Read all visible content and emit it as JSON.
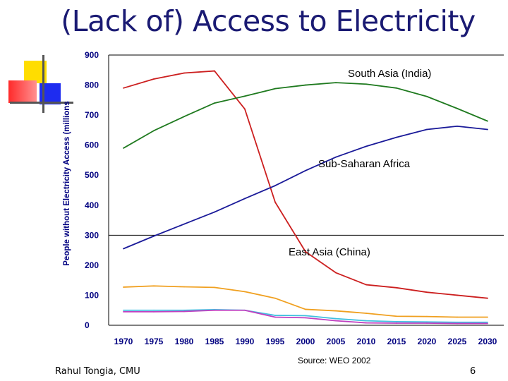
{
  "slide": {
    "title": "(Lack of) Access to Electricity",
    "footer_left": "Rahul Tongia, CMU",
    "footer_right": "6",
    "source": "Source: WEO 2002"
  },
  "chart_data": {
    "type": "line",
    "title": "",
    "xlabel": "",
    "ylabel": "People without Electricity Access (millions",
    "ylim": [
      0,
      900
    ],
    "yticks": [
      0,
      100,
      200,
      300,
      400,
      500,
      600,
      700,
      800,
      900
    ],
    "x": [
      1970,
      1975,
      1980,
      1985,
      1990,
      1995,
      2000,
      2005,
      2010,
      2015,
      2020,
      2025,
      2030
    ],
    "grid": "horizontal lines at 300 and 900",
    "annotations": [
      "South Asia (India)",
      "Sub-Saharan Africa",
      "East Asia (China)"
    ],
    "series": [
      {
        "color": "#cc1f1f",
        "values": [
          790,
          820,
          840,
          847,
          720,
          410,
          245,
          175,
          135,
          125,
          110,
          100,
          90
        ]
      },
      {
        "color": "#1f7a1f",
        "values": [
          590,
          648,
          695,
          740,
          763,
          788,
          800,
          808,
          803,
          790,
          762,
          722,
          680
        ]
      },
      {
        "color": "#1a1a99",
        "values": [
          255,
          297,
          337,
          377,
          422,
          465,
          515,
          560,
          596,
          626,
          652,
          663,
          652
        ]
      },
      {
        "color": "#f0a020",
        "values": [
          127,
          131,
          128,
          126,
          112,
          90,
          53,
          48,
          40,
          30,
          29,
          27,
          27
        ]
      },
      {
        "color": "#40c0e0",
        "values": [
          50,
          50,
          50,
          52,
          50,
          33,
          32,
          22,
          15,
          12,
          11,
          10,
          10
        ]
      },
      {
        "color": "#c040c0",
        "values": [
          45,
          45,
          46,
          50,
          50,
          27,
          25,
          15,
          8,
          7,
          7,
          6,
          6
        ]
      }
    ]
  }
}
